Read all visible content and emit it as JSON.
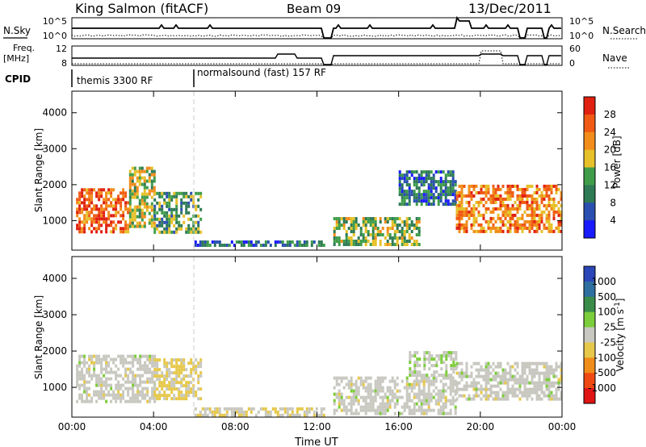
{
  "header": {
    "station": "King Salmon (fitACF)",
    "beam": "Beam 09",
    "date": "13/Dec/2011"
  },
  "param_panels": {
    "nsky_label": "N.Sky",
    "nsky_ticks": [
      "10^5",
      "10^0"
    ],
    "nsearch_label": "N.Search",
    "nsearch_ticks": [
      "10^5",
      "10^0"
    ],
    "freq_label": "Freq.",
    "freq_unit": "[MHz]",
    "freq_ticks": [
      "12",
      "8"
    ],
    "nave_label": "Nave",
    "nave_ticks": [
      "60",
      "0"
    ],
    "cpid_label": "CPID",
    "cpid_segments": [
      "themis 3300 RF",
      "normalsound (fast) 157 RF"
    ]
  },
  "colors": {
    "power_scale": [
      "#1a1aff",
      "#2a4fb0",
      "#2e7a55",
      "#3f9d4a",
      "#e6c12a",
      "#f28c1a",
      "#f05a14",
      "#e02010"
    ],
    "velocity_scale": [
      "#2a46b8",
      "#2f6fa0",
      "#3a8c4a",
      "#7ccd3a",
      "#c8c8c0",
      "#e6c84a",
      "#f08c1a",
      "#f04a14",
      "#e01414"
    ]
  },
  "chart_data": [
    {
      "type": "heatmap",
      "title": "",
      "ylabel": "Slant Range [km]",
      "xlabel": "",
      "ylim": [
        180,
        4600
      ],
      "xlim": [
        "00:00",
        "24:00"
      ],
      "yticks": [
        "1000",
        "2000",
        "3000",
        "4000"
      ],
      "xticks": [
        "00:00",
        "04:00",
        "08:00",
        "12:00",
        "16:00",
        "20:00",
        "00:00"
      ],
      "colorbar": {
        "label": "Power [dB]",
        "ticks": [
          "28",
          "24",
          "20",
          "16",
          "12",
          "8",
          "4"
        ],
        "range": [
          0,
          30
        ]
      },
      "regions": [
        {
          "t": [
            0.2,
            2.8
          ],
          "r": [
            700,
            1900
          ],
          "value": 24
        },
        {
          "t": [
            2.8,
            4.0
          ],
          "r": [
            800,
            2500
          ],
          "value": 16
        },
        {
          "t": [
            4.0,
            6.3
          ],
          "r": [
            700,
            1800
          ],
          "value": 12
        },
        {
          "t": [
            6.0,
            12.3
          ],
          "r": [
            300,
            450
          ],
          "value": 8
        },
        {
          "t": [
            12.8,
            17.0
          ],
          "r": [
            300,
            1100
          ],
          "value": 14
        },
        {
          "t": [
            16.0,
            18.8
          ],
          "r": [
            1500,
            2400
          ],
          "value": 8
        },
        {
          "t": [
            18.8,
            24.0
          ],
          "r": [
            700,
            2000
          ],
          "value": 22
        }
      ]
    },
    {
      "type": "heatmap",
      "title": "",
      "ylabel": "Slant Range [km]",
      "xlabel": "Time UT",
      "ylim": [
        180,
        4600
      ],
      "xlim": [
        "00:00",
        "24:00"
      ],
      "yticks": [
        "1000",
        "2000",
        "3000",
        "4000"
      ],
      "xticks": [
        "00:00",
        "04:00",
        "08:00",
        "12:00",
        "16:00",
        "20:00",
        "00:00"
      ],
      "colorbar": {
        "label": "Velocity [m s^-1]",
        "ticks": [
          "1000",
          "500",
          "100",
          "25",
          "-25",
          "-100",
          "-500",
          "-1000"
        ],
        "range": [
          -1000,
          1000
        ]
      },
      "regions": [
        {
          "t": [
            0.2,
            4.0
          ],
          "r": [
            600,
            1900
          ],
          "value": 0
        },
        {
          "t": [
            4.0,
            6.3
          ],
          "r": [
            700,
            1800
          ],
          "value": -150
        },
        {
          "t": [
            6.0,
            12.3
          ],
          "r": [
            250,
            450
          ],
          "value": -60
        },
        {
          "t": [
            12.8,
            18.8
          ],
          "r": [
            300,
            1300
          ],
          "value": 0
        },
        {
          "t": [
            16.5,
            18.8
          ],
          "r": [
            1300,
            2000
          ],
          "value": 80
        },
        {
          "t": [
            18.8,
            24.0
          ],
          "r": [
            700,
            1700
          ],
          "value": 0
        }
      ]
    }
  ],
  "footer": {
    "xlabel": "Time UT"
  }
}
